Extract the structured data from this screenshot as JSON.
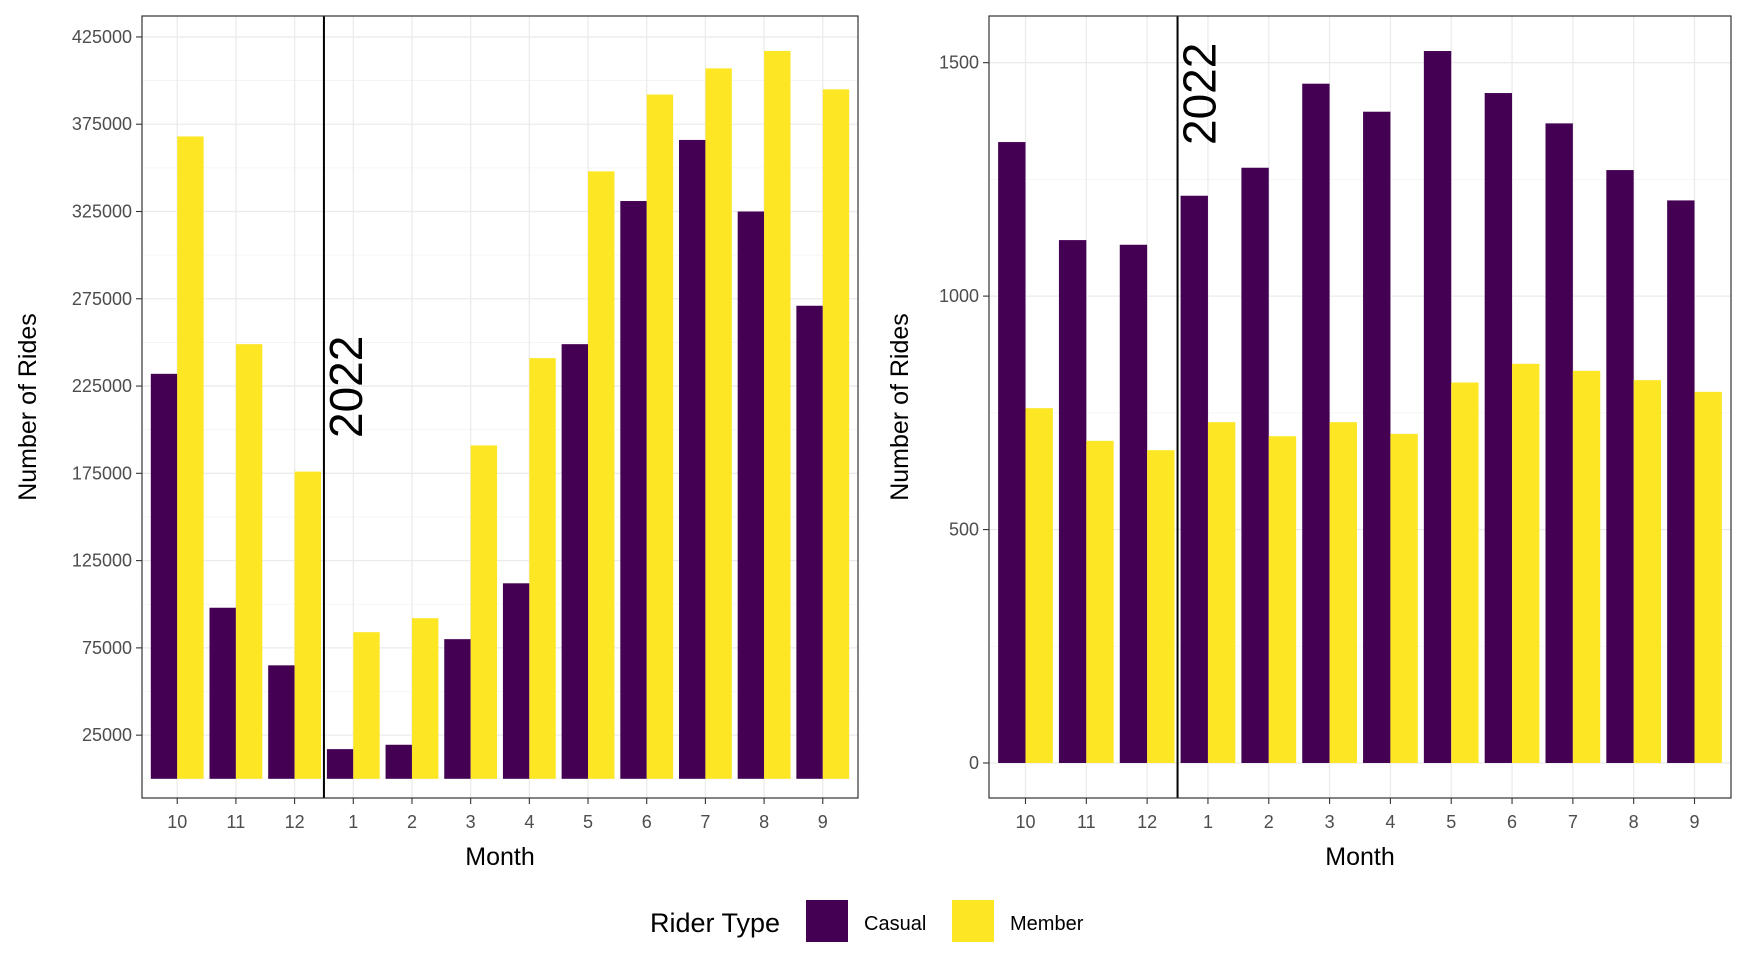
{
  "chart_data": [
    {
      "type": "bar",
      "title": "",
      "xlabel": "Month",
      "ylabel": "Number of Rides",
      "categories": [
        "10",
        "11",
        "12",
        "1",
        "2",
        "3",
        "4",
        "5",
        "6",
        "7",
        "8",
        "9"
      ],
      "series": [
        {
          "name": "Casual",
          "color": "#440154",
          "values": [
            232000,
            98000,
            65000,
            17000,
            19500,
            80000,
            112000,
            249000,
            331000,
            366000,
            325000,
            271000
          ]
        },
        {
          "name": "Member",
          "color": "#FDE725",
          "values": [
            368000,
            249000,
            176000,
            84000,
            92000,
            191000,
            241000,
            348000,
            392000,
            407000,
            417000,
            395000
          ]
        }
      ],
      "yticks": [
        "25000",
        "75000",
        "125000",
        "175000",
        "225000",
        "275000",
        "325000",
        "375000",
        "425000"
      ],
      "ylim": [
        -11000,
        437000
      ],
      "annotation": {
        "label": "2022",
        "between": [
          "12",
          "1"
        ]
      },
      "grid": true
    },
    {
      "type": "bar",
      "title": "",
      "xlabel": "Month",
      "ylabel": "Number of Rides",
      "categories": [
        "10",
        "11",
        "12",
        "1",
        "2",
        "3",
        "4",
        "5",
        "6",
        "7",
        "8",
        "9"
      ],
      "series": [
        {
          "name": "Casual",
          "color": "#440154",
          "values": [
            1330,
            1120,
            1110,
            1215,
            1275,
            1455,
            1395,
            1525,
            1435,
            1370,
            1270,
            1205
          ]
        },
        {
          "name": "Member",
          "color": "#FDE725",
          "values": [
            760,
            690,
            670,
            730,
            700,
            730,
            705,
            815,
            855,
            840,
            820,
            795
          ]
        }
      ],
      "yticks": [
        "0",
        "500",
        "1000",
        "1500"
      ],
      "ylim": [
        -75,
        1600
      ],
      "annotation": {
        "label": "2022",
        "between": [
          "12",
          "1"
        ]
      },
      "grid": true
    }
  ],
  "legend": {
    "title": "Rider Type",
    "position": "bottom",
    "items": [
      {
        "label": "Casual",
        "color": "#440154"
      },
      {
        "label": "Member",
        "color": "#FDE725"
      }
    ]
  }
}
